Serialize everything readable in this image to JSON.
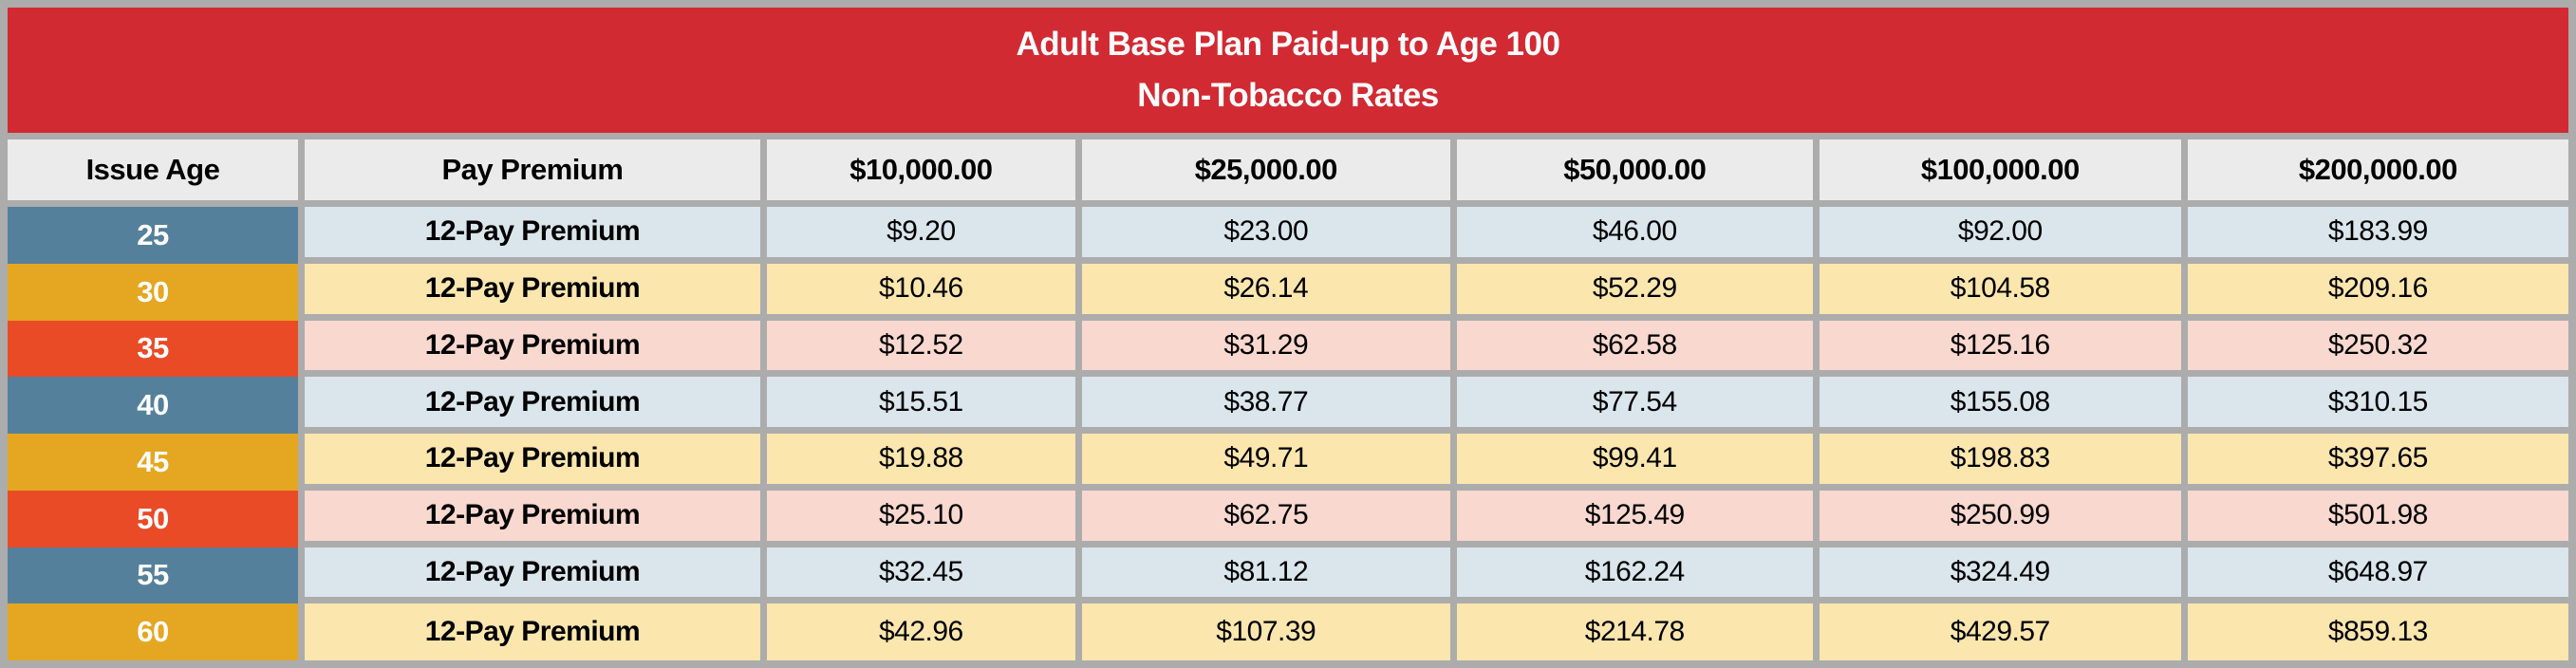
{
  "table": {
    "title_line1": "Adult Base Plan Paid-up to Age 100",
    "title_line2": "Non-Tobacco Rates",
    "columns": [
      "Issue Age",
      "Pay Premium",
      "$10,000.00",
      "$25,000.00",
      "$50,000.00",
      "$100,000.00",
      "$200,000.00"
    ],
    "rows": [
      {
        "age": "25",
        "premium_type": "12-Pay Premium",
        "values": [
          "$9.20",
          "$23.00",
          "$46.00",
          "$92.00",
          "$183.99"
        ]
      },
      {
        "age": "30",
        "premium_type": "12-Pay Premium",
        "values": [
          "$10.46",
          "$26.14",
          "$52.29",
          "$104.58",
          "$209.16"
        ]
      },
      {
        "age": "35",
        "premium_type": "12-Pay Premium",
        "values": [
          "$12.52",
          "$31.29",
          "$62.58",
          "$125.16",
          "$250.32"
        ]
      },
      {
        "age": "40",
        "premium_type": "12-Pay Premium",
        "values": [
          "$15.51",
          "$38.77",
          "$77.54",
          "$155.08",
          "$310.15"
        ]
      },
      {
        "age": "45",
        "premium_type": "12-Pay Premium",
        "values": [
          "$19.88",
          "$49.71",
          "$99.41",
          "$198.83",
          "$397.65"
        ]
      },
      {
        "age": "50",
        "premium_type": "12-Pay Premium",
        "values": [
          "$25.10",
          "$62.75",
          "$125.49",
          "$250.99",
          "$501.98"
        ]
      },
      {
        "age": "55",
        "premium_type": "12-Pay Premium",
        "values": [
          "$32.45",
          "$81.12",
          "$162.24",
          "$324.49",
          "$648.97"
        ]
      },
      {
        "age": "60",
        "premium_type": "12-Pay Premium",
        "values": [
          "$42.96",
          "$107.39",
          "$214.78",
          "$429.57",
          "$859.13"
        ]
      }
    ]
  },
  "colors": {
    "banner_red": "#D12A33",
    "border_gray": "#ACACAC",
    "header_bg": "#EBEBEB",
    "age_blue": "#55809B",
    "age_gold": "#E5A621",
    "age_red": "#E94B27",
    "row_blue": "#DAE5EC",
    "row_gold": "#FBE6AE",
    "row_red": "#F8D8CF",
    "text_dark": "#000000",
    "text_light": "#FFFFFF"
  }
}
